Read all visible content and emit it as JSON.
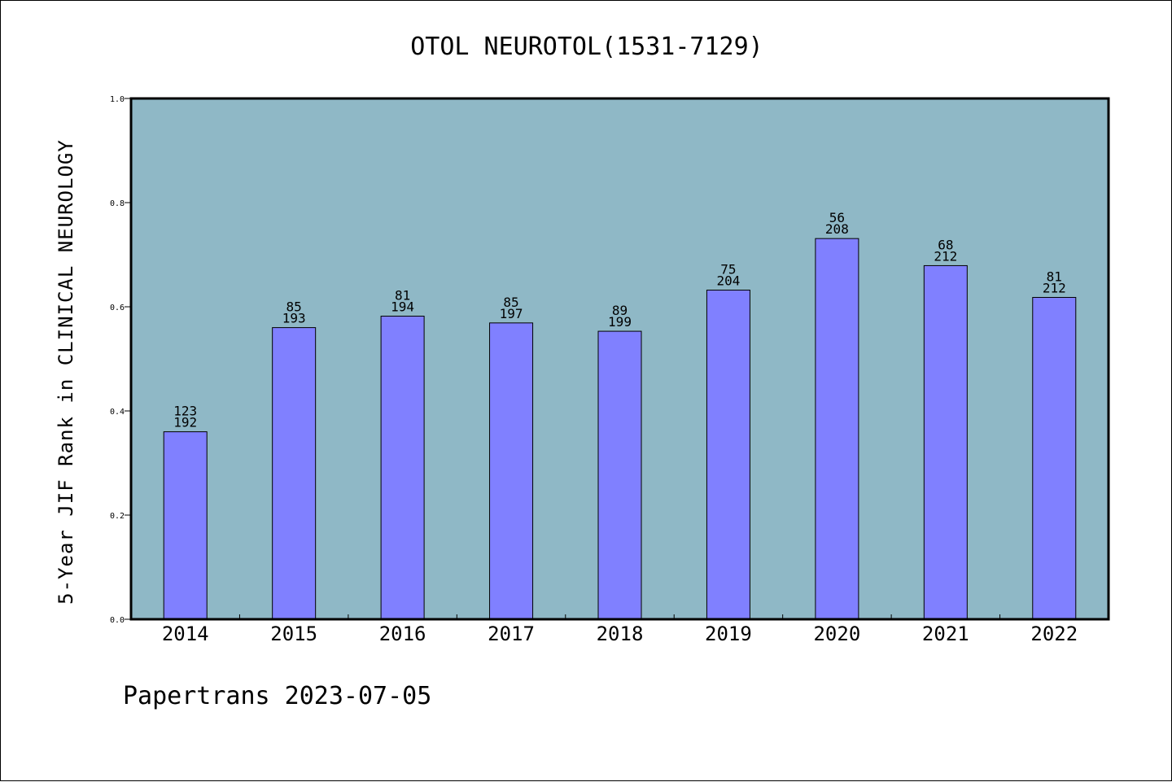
{
  "chart_data": {
    "type": "bar",
    "title": "OTOL NEUROTOL(1531-7129)",
    "ylabel": "5-Year JIF Rank in CLINICAL NEUROLOGY",
    "xlabel": "",
    "ylim": [
      0,
      1.0
    ],
    "yticks": [
      "0.0",
      "0.2",
      "0.4",
      "0.6",
      "0.8",
      "1.0"
    ],
    "grid": false,
    "categories": [
      "2014",
      "2015",
      "2016",
      "2017",
      "2018",
      "2019",
      "2020",
      "2021",
      "2022"
    ],
    "values": [
      0.36,
      0.56,
      0.582,
      0.569,
      0.553,
      0.632,
      0.731,
      0.679,
      0.618
    ],
    "rank_labels": [
      "123",
      "85",
      "81",
      "85",
      "89",
      "75",
      "56",
      "68",
      "81"
    ],
    "total_labels": [
      "192",
      "193",
      "194",
      "197",
      "199",
      "204",
      "208",
      "212",
      "212"
    ]
  },
  "footer": "Papertrans 2023-07-05",
  "colors": {
    "plot_background": "#8fb8c6",
    "bar_fill": "#8080ff",
    "bar_stroke": "#000000"
  }
}
